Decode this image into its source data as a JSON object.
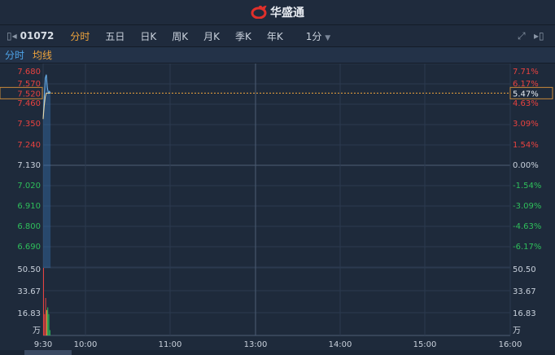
{
  "header": {
    "brand": "华盛通",
    "brand_color": "#e0302b"
  },
  "toolbar": {
    "code": "01072",
    "tabs": [
      "分时",
      "五日",
      "日K",
      "周K",
      "月K",
      "季K",
      "年K"
    ],
    "active_tab": "分时",
    "interval": "1分"
  },
  "legend": {
    "line1": "分时",
    "line2": "均线"
  },
  "chart_data": {
    "type": "line",
    "prev_close": 7.13,
    "current_price": "7.520",
    "current_pct": "5.47%",
    "price_ticks": [
      "7.680",
      "7.570",
      "7.460",
      "7.350",
      "7.240",
      "7.130",
      "7.020",
      "6.910",
      "6.800",
      "6.690"
    ],
    "pct_ticks": [
      "7.71%",
      "6.17%",
      "4.63%",
      "3.09%",
      "1.54%",
      "0.00%",
      "-1.54%",
      "-3.09%",
      "-4.63%",
      "-6.17%"
    ],
    "volume_ticks": [
      "50.50",
      "33.67",
      "16.83"
    ],
    "volume_unit": "万",
    "x_ticks": [
      "9:30",
      "10:00",
      "11:00",
      "13:00",
      "14:00",
      "15:00",
      "16:00"
    ],
    "price_series": [
      7.38,
      7.5,
      7.6,
      7.62,
      7.55,
      7.52,
      7.53,
      7.52
    ],
    "avg_series": [
      7.38,
      7.45,
      7.5,
      7.52,
      7.52,
      7.52,
      7.52,
      7.52
    ],
    "volumes": [
      {
        "v": 50.5,
        "c": "red"
      },
      {
        "v": 16,
        "c": "red"
      },
      {
        "v": 28,
        "c": "red"
      },
      {
        "v": 19,
        "c": "orange"
      },
      {
        "v": 21,
        "c": "green"
      },
      {
        "v": 16,
        "c": "green"
      },
      {
        "v": 4,
        "c": "green"
      }
    ]
  }
}
